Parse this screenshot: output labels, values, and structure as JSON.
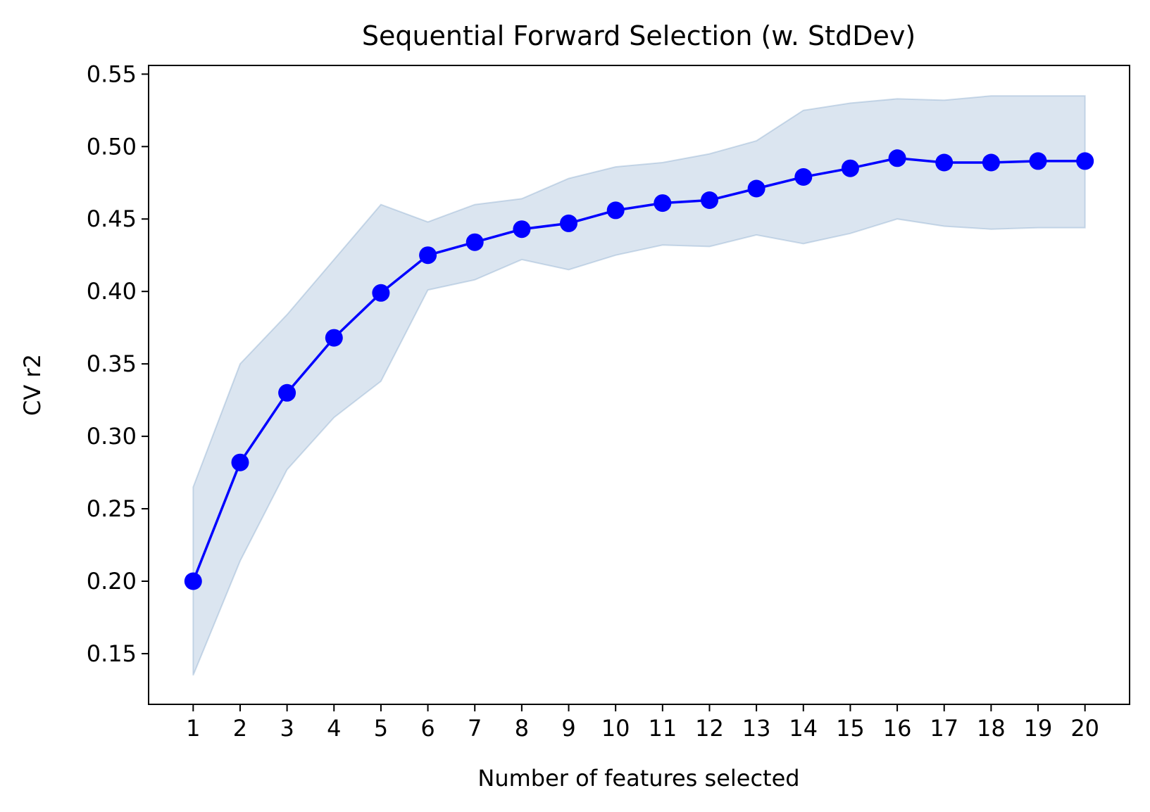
{
  "chart_data": {
    "type": "line",
    "title": "Sequential Forward Selection (w. StdDev)",
    "xlabel": "Number of features selected",
    "ylabel": "CV r2",
    "x": [
      1,
      2,
      3,
      4,
      5,
      6,
      7,
      8,
      9,
      10,
      11,
      12,
      13,
      14,
      15,
      16,
      17,
      18,
      19,
      20
    ],
    "x_tick_labels": [
      "1",
      "2",
      "3",
      "4",
      "5",
      "6",
      "7",
      "8",
      "9",
      "10",
      "11",
      "12",
      "13",
      "14",
      "15",
      "16",
      "17",
      "18",
      "19",
      "20"
    ],
    "y_ticks": [
      0.15,
      0.2,
      0.25,
      0.3,
      0.35,
      0.4,
      0.45,
      0.5,
      0.55
    ],
    "y_tick_labels": [
      "0.15",
      "0.20",
      "0.25",
      "0.30",
      "0.35",
      "0.40",
      "0.45",
      "0.50",
      "0.55"
    ],
    "xlim": [
      0.05,
      20.95
    ],
    "ylim": [
      0.115,
      0.556
    ],
    "grid": false,
    "series": [
      {
        "values": [
          0.2,
          0.282,
          0.33,
          0.368,
          0.399,
          0.425,
          0.434,
          0.443,
          0.447,
          0.456,
          0.461,
          0.463,
          0.471,
          0.479,
          0.485,
          0.492,
          0.489,
          0.489,
          0.49,
          0.49
        ],
        "upper": [
          0.265,
          0.35,
          0.384,
          0.422,
          0.46,
          0.448,
          0.46,
          0.464,
          0.478,
          0.486,
          0.489,
          0.495,
          0.504,
          0.525,
          0.53,
          0.533,
          0.532,
          0.535,
          0.535,
          0.535
        ],
        "lower": [
          0.135,
          0.214,
          0.277,
          0.313,
          0.338,
          0.401,
          0.408,
          0.422,
          0.415,
          0.425,
          0.432,
          0.431,
          0.439,
          0.433,
          0.44,
          0.45,
          0.445,
          0.443,
          0.444,
          0.444
        ],
        "color": "#0000ff",
        "band_color": "#4c7fb4",
        "marker": "circle"
      }
    ]
  }
}
